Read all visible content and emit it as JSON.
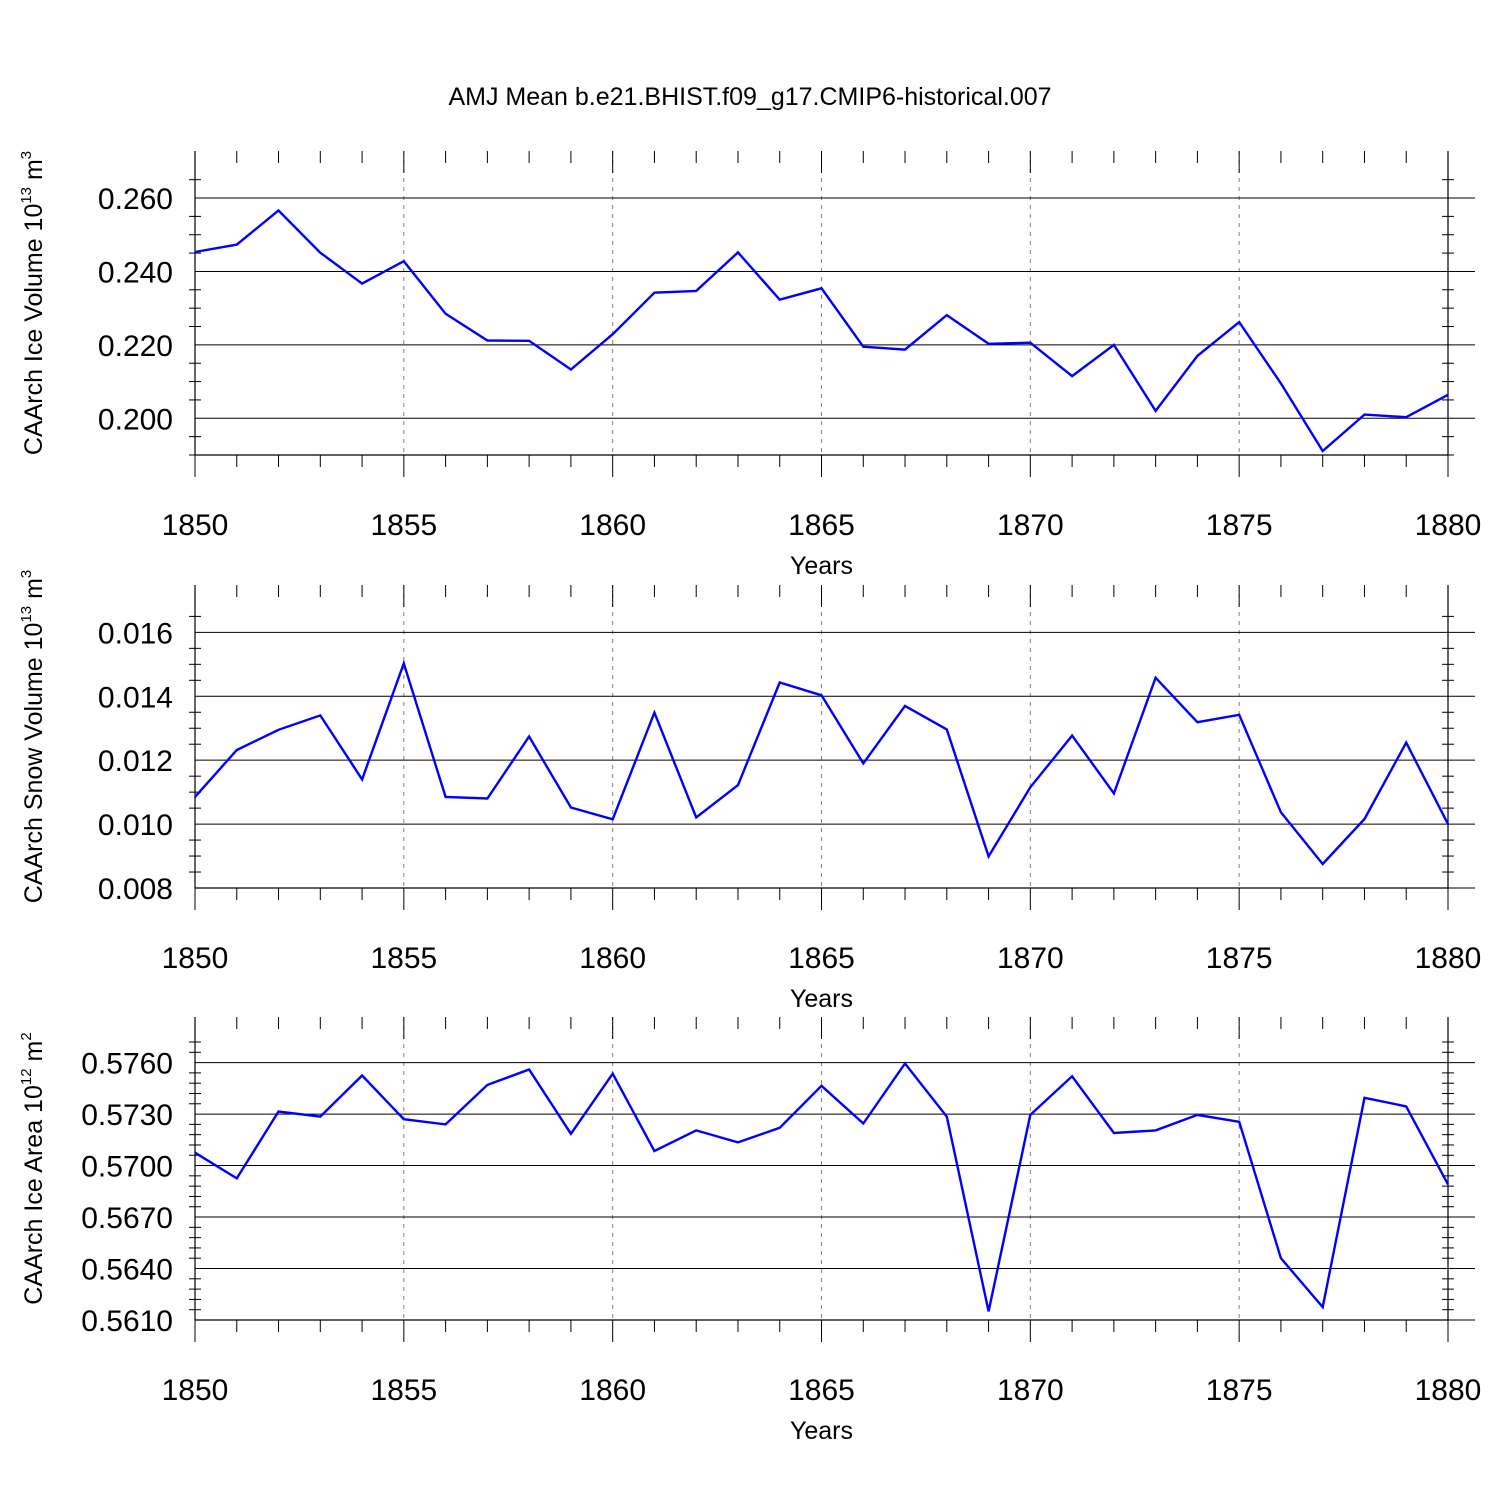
{
  "title": "AMJ Mean b.e21.BHIST.f09_g17.CMIP6-historical.007",
  "colors": {
    "line": "#0000ff",
    "axis": "#000000",
    "grid": "#808080"
  },
  "chart_data": [
    {
      "type": "line",
      "xlabel": "Years",
      "ylabel": {
        "text": "CAArch Ice Volume 10",
        "exponent": "13",
        "unit": " m",
        "unit_exponent": "3"
      },
      "x": [
        1850,
        1851,
        1852,
        1853,
        1854,
        1855,
        1856,
        1857,
        1858,
        1859,
        1860,
        1861,
        1862,
        1863,
        1864,
        1865,
        1866,
        1867,
        1868,
        1869,
        1870,
        1871,
        1872,
        1873,
        1874,
        1875,
        1876,
        1877,
        1878,
        1879,
        1880
      ],
      "values": [
        0.2453,
        0.2473,
        0.2566,
        0.2451,
        0.2367,
        0.2428,
        0.2285,
        0.2212,
        0.2211,
        0.2133,
        0.2229,
        0.2342,
        0.2347,
        0.2452,
        0.2323,
        0.2354,
        0.2195,
        0.2187,
        0.2281,
        0.2203,
        0.2206,
        0.2115,
        0.22,
        0.202,
        0.217,
        0.2262,
        0.2095,
        0.1911,
        0.201,
        0.2003,
        0.2064
      ],
      "xlim": [
        1850,
        1880
      ],
      "ylim": [
        0.19,
        0.266
      ],
      "xticks": [
        1850,
        1855,
        1860,
        1865,
        1870,
        1875,
        1880
      ],
      "xtick_labels": [
        "1850",
        "1855",
        "1860",
        "1865",
        "1870",
        "1875",
        "1880"
      ],
      "yticks": [
        0.2,
        0.22,
        0.24,
        0.26
      ],
      "ytick_labels": [
        "0.200",
        "0.220",
        "0.240",
        "0.260"
      ],
      "yminor_step": 0.005,
      "grid": "vertical dashed at major x ticks"
    },
    {
      "type": "line",
      "xlabel": "Years",
      "ylabel": {
        "text": "CAArch Snow Volume 10",
        "exponent": "13",
        "unit": " m",
        "unit_exponent": "3"
      },
      "x": [
        1850,
        1851,
        1852,
        1853,
        1854,
        1855,
        1856,
        1857,
        1858,
        1859,
        1860,
        1861,
        1862,
        1863,
        1864,
        1865,
        1866,
        1867,
        1868,
        1869,
        1870,
        1871,
        1872,
        1873,
        1874,
        1875,
        1876,
        1877,
        1878,
        1879,
        1880
      ],
      "values": [
        0.01085,
        0.01232,
        0.01295,
        0.0134,
        0.0114,
        0.01503,
        0.01085,
        0.0108,
        0.01274,
        0.01052,
        0.01015,
        0.01349,
        0.01021,
        0.01122,
        0.01443,
        0.01403,
        0.0119,
        0.0137,
        0.01296,
        0.00899,
        0.01115,
        0.01277,
        0.01096,
        0.01458,
        0.01319,
        0.01342,
        0.01037,
        0.00875,
        0.01016,
        0.01255,
        0.01
      ],
      "xlim": [
        1850,
        1880
      ],
      "ylim": [
        0.008,
        0.0167
      ],
      "xticks": [
        1850,
        1855,
        1860,
        1865,
        1870,
        1875,
        1880
      ],
      "xtick_labels": [
        "1850",
        "1855",
        "1860",
        "1865",
        "1870",
        "1875",
        "1880"
      ],
      "yticks": [
        0.008,
        0.01,
        0.012,
        0.014,
        0.016
      ],
      "ytick_labels": [
        "0.008",
        "0.010",
        "0.012",
        "0.014",
        "0.016"
      ],
      "yminor_step": 0.0005,
      "grid": "vertical dashed at major x ticks"
    },
    {
      "type": "line",
      "xlabel": "Years",
      "ylabel": {
        "text": "CAArch Ice Area 10",
        "exponent": "12",
        "unit": " m",
        "unit_exponent": "2"
      },
      "x": [
        1850,
        1851,
        1852,
        1853,
        1854,
        1855,
        1856,
        1857,
        1858,
        1859,
        1860,
        1861,
        1862,
        1863,
        1864,
        1865,
        1866,
        1867,
        1868,
        1869,
        1870,
        1871,
        1872,
        1873,
        1874,
        1875,
        1876,
        1877,
        1878,
        1879,
        1880
      ],
      "values": [
        0.57075,
        0.56925,
        0.57315,
        0.57285,
        0.57525,
        0.5727,
        0.5724,
        0.5747,
        0.5756,
        0.57185,
        0.57535,
        0.57085,
        0.57205,
        0.57135,
        0.5722,
        0.57465,
        0.57245,
        0.57595,
        0.57285,
        0.5615,
        0.57295,
        0.5752,
        0.5719,
        0.57205,
        0.57295,
        0.57255,
        0.5646,
        0.56175,
        0.57395,
        0.57345,
        0.5689
      ],
      "xlim": [
        1850,
        1880
      ],
      "ylim": [
        0.561,
        0.5772
      ],
      "xticks": [
        1850,
        1855,
        1860,
        1865,
        1870,
        1875,
        1880
      ],
      "xtick_labels": [
        "1850",
        "1855",
        "1860",
        "1865",
        "1870",
        "1875",
        "1880"
      ],
      "yticks": [
        0.561,
        0.564,
        0.567,
        0.57,
        0.573,
        0.576
      ],
      "ytick_labels": [
        "0.5610",
        "0.5640",
        "0.5670",
        "0.5700",
        "0.5730",
        "0.5760"
      ],
      "yminor_step": 0.0006,
      "grid": "vertical dashed at major x ticks"
    }
  ]
}
